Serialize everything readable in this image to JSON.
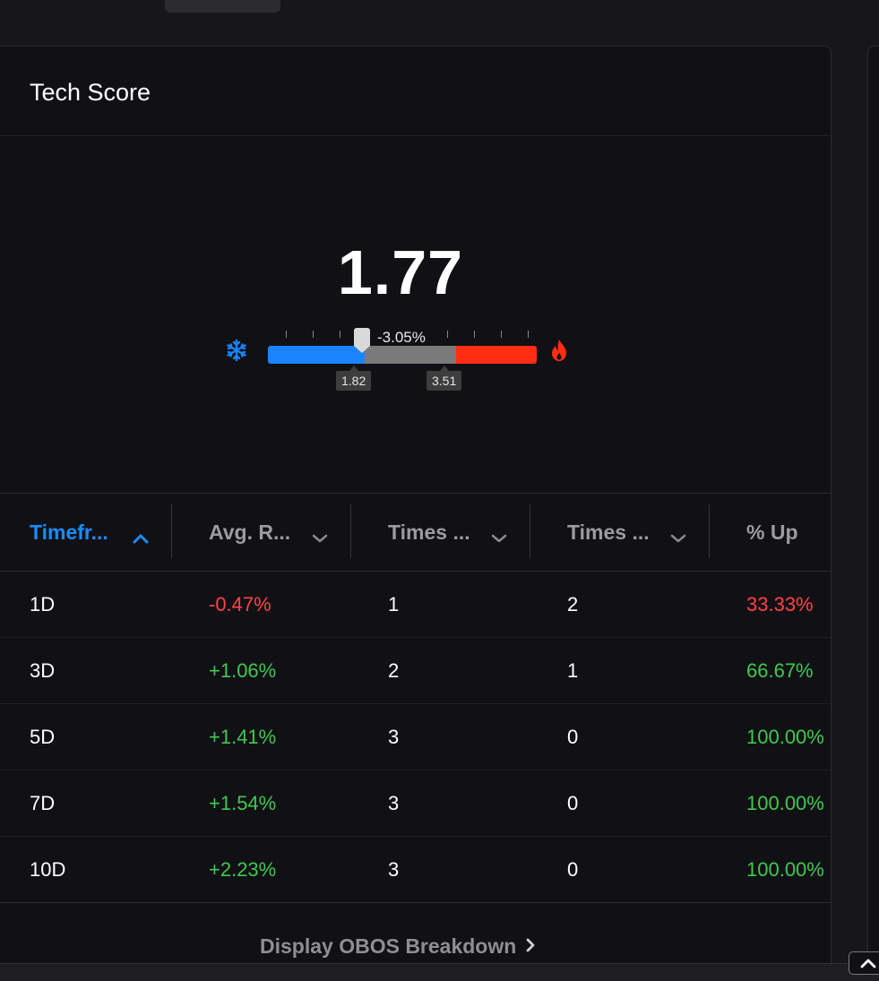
{
  "card": {
    "title": "Tech Score"
  },
  "score": {
    "value": "1.77"
  },
  "gauge": {
    "change_pct": "-3.05%",
    "low_marker": "1.82",
    "high_marker": "3.51",
    "cold_icon": "snowflake-icon",
    "hot_icon": "flame-icon",
    "colors": {
      "cold": "#1a84ff",
      "neutral": "#7a7a7a",
      "hot": "#ff2d12"
    }
  },
  "table": {
    "headers": [
      {
        "label": "Timefr...",
        "sort": "asc",
        "active": true
      },
      {
        "label": "Avg. R...",
        "sort": "none",
        "active": false
      },
      {
        "label": "Times ...",
        "sort": "none",
        "active": false
      },
      {
        "label": "Times ...",
        "sort": "none",
        "active": false
      },
      {
        "label": "% Up",
        "sort": "none",
        "active": false
      }
    ],
    "rows": [
      {
        "timeframe": "1D",
        "avg_return": "-0.47%",
        "times_a": "1",
        "times_b": "2",
        "pct_up": "33.33%",
        "avg_dir": "neg",
        "pct_dir": "neg"
      },
      {
        "timeframe": "3D",
        "avg_return": "+1.06%",
        "times_a": "2",
        "times_b": "1",
        "pct_up": "66.67%",
        "avg_dir": "pos",
        "pct_dir": "pos"
      },
      {
        "timeframe": "5D",
        "avg_return": "+1.41%",
        "times_a": "3",
        "times_b": "0",
        "pct_up": "100.00%",
        "avg_dir": "pos",
        "pct_dir": "pos"
      },
      {
        "timeframe": "7D",
        "avg_return": "+1.54%",
        "times_a": "3",
        "times_b": "0",
        "pct_up": "100.00%",
        "avg_dir": "pos",
        "pct_dir": "pos"
      },
      {
        "timeframe": "10D",
        "avg_return": "+2.23%",
        "times_a": "3",
        "times_b": "0",
        "pct_up": "100.00%",
        "avg_dir": "pos",
        "pct_dir": "pos"
      }
    ]
  },
  "footer": {
    "link_label": "Display OBOS Breakdown"
  },
  "colors": {
    "accent": "#1a8cff",
    "positive": "#3fc94f",
    "negative": "#ff4242"
  }
}
